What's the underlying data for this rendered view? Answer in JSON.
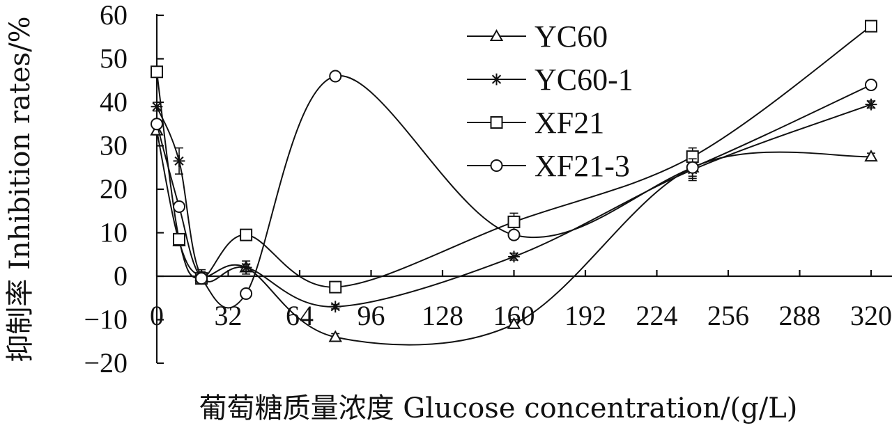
{
  "chart_data": {
    "type": "line",
    "xlabel": "葡萄糖质量浓度 Glucose concentration/(g/L)",
    "ylabel": "抑制率 Inhibition rates/%",
    "xlim": [
      0,
      330
    ],
    "ylim": [
      -20,
      60
    ],
    "xticks": [
      "0",
      "32",
      "64",
      "96",
      "128",
      "160",
      "192",
      "224",
      "256",
      "288",
      "320"
    ],
    "yticks": [
      "60",
      "50",
      "40",
      "30",
      "20",
      "10",
      "0",
      "−10",
      "−20"
    ],
    "xtick_values": [
      0,
      32,
      64,
      96,
      128,
      160,
      192,
      224,
      256,
      288,
      320
    ],
    "ytick_values": [
      60,
      50,
      40,
      30,
      20,
      10,
      0,
      -10,
      -20
    ],
    "x": [
      0,
      10,
      20,
      40,
      80,
      160,
      240,
      320
    ],
    "legend_position": "top-right",
    "grid": false,
    "series": [
      {
        "name": "YC60",
        "marker": "triangle",
        "values": [
          33.5,
          8,
          0,
          2,
          -14,
          -11,
          25,
          27.5
        ],
        "errors": [
          1,
          1,
          1,
          1.5,
          0.8,
          1,
          3,
          0.8
        ]
      },
      {
        "name": "YC60-1",
        "marker": "asterisk",
        "values": [
          39,
          26.5,
          0,
          2,
          -7,
          4.5,
          24.5,
          39.5
        ],
        "errors": [
          1,
          3,
          1.5,
          0.8,
          0.5,
          0.8,
          2,
          0.8
        ]
      },
      {
        "name": "XF21",
        "marker": "square",
        "values": [
          47,
          8.5,
          -0.5,
          9.5,
          -2.5,
          12.5,
          27.5,
          57.5
        ],
        "errors": [
          1,
          1,
          0.8,
          0.8,
          0.8,
          2,
          2,
          0.8
        ]
      },
      {
        "name": "XF21-3",
        "marker": "circle",
        "values": [
          35,
          16,
          -0.5,
          -4,
          46,
          9.5,
          25,
          44
        ],
        "errors": [
          1,
          1,
          0.8,
          1,
          0.5,
          1,
          2,
          1
        ]
      }
    ]
  }
}
